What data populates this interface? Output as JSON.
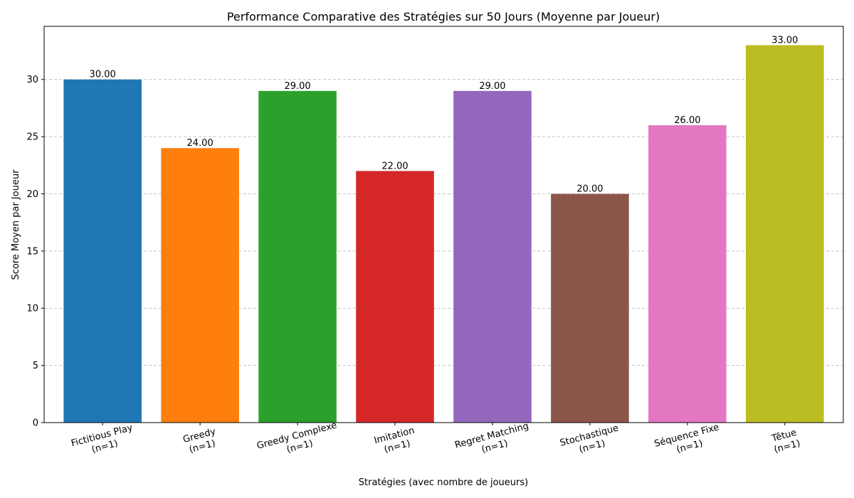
{
  "chart_data": {
    "type": "bar",
    "title": "Performance Comparative des Stratégies sur 50 Jours (Moyenne par Joueur)",
    "xlabel": "Stratégies (avec nombre de joueurs)",
    "ylabel": "Score Moyen par Joueur",
    "categories": [
      [
        "Fictitious Play",
        "(n=1)"
      ],
      [
        "Greedy",
        "(n=1)"
      ],
      [
        "Greedy Complexe",
        "(n=1)"
      ],
      [
        "Imitation",
        "(n=1)"
      ],
      [
        "Regret Matching",
        "(n=1)"
      ],
      [
        "Stochastique",
        "(n=1)"
      ],
      [
        "Séquence Fixe",
        "(n=1)"
      ],
      [
        "Têtue",
        "(n=1)"
      ]
    ],
    "values": [
      30,
      24,
      29,
      22,
      29,
      20,
      26,
      33
    ],
    "value_labels": [
      "30.00",
      "24.00",
      "29.00",
      "22.00",
      "29.00",
      "20.00",
      "26.00",
      "33.00"
    ],
    "colors": [
      "#1f77b4",
      "#ff7f0e",
      "#2ca02c",
      "#d62728",
      "#9467bd",
      "#8c564b",
      "#e377c2",
      "#bcbd22"
    ],
    "ylim": [
      0,
      34.65
    ],
    "yticks": [
      0,
      5,
      10,
      15,
      20,
      25,
      30
    ],
    "grid": "y-dashed",
    "legend": "none"
  }
}
